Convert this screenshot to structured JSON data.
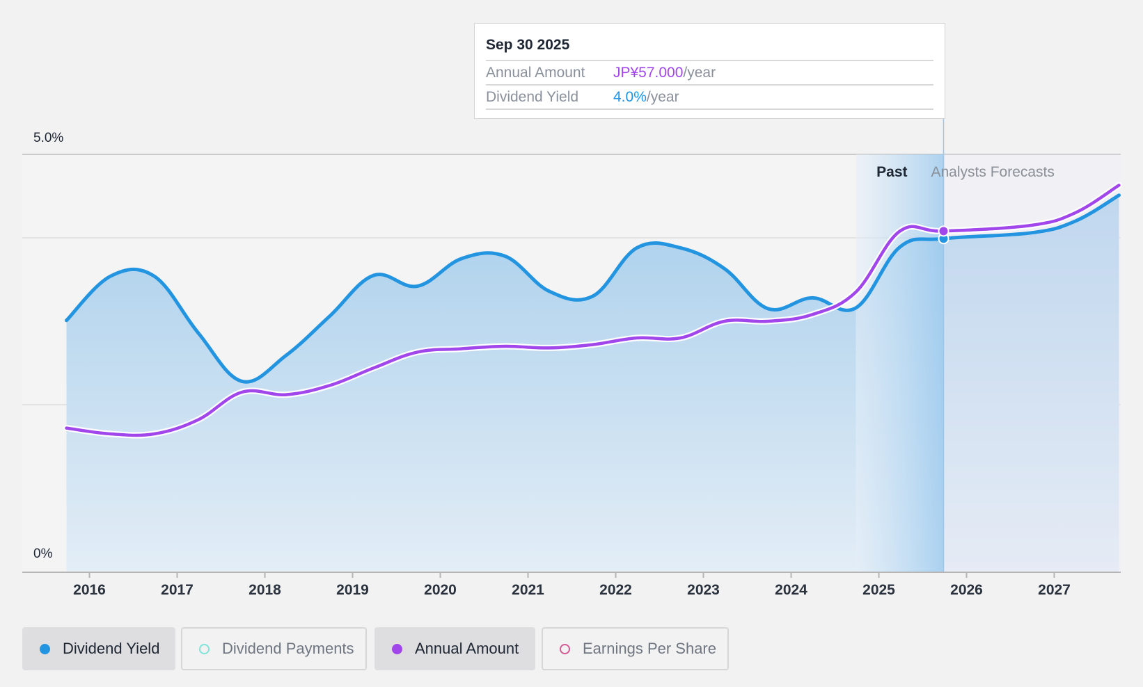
{
  "tooltip": {
    "date": "Sep 30 2025",
    "rows": [
      {
        "label": "Annual Amount",
        "value": "JP¥57.000",
        "suffix": "/year"
      },
      {
        "label": "Dividend Yield",
        "value": "4.0%",
        "suffix": "/year"
      }
    ]
  },
  "regions": {
    "past": "Past",
    "forecast": "Analysts Forecasts"
  },
  "legend": [
    {
      "label": "Dividend Yield",
      "color": "#2394e0",
      "active": true
    },
    {
      "label": "Dividend Payments",
      "color": "#7fe3d8",
      "active": false
    },
    {
      "label": "Annual Amount",
      "color": "#a146ea",
      "active": true
    },
    {
      "label": "Earnings Per Share",
      "color": "#d45a94",
      "active": false
    }
  ],
  "chart_data": {
    "type": "line",
    "ylim": [
      0,
      5.0
    ],
    "y_ticks": [
      "0%",
      "5.0%"
    ],
    "x_ticks": [
      "2016",
      "2017",
      "2018",
      "2019",
      "2020",
      "2021",
      "2022",
      "2023",
      "2024",
      "2025",
      "2026",
      "2027"
    ],
    "past_forecast_split": "2025-09-30",
    "highlight_date": "2025-09-30",
    "series": [
      {
        "name": "Dividend Yield",
        "color": "#2394e0",
        "unit": "%",
        "points": [
          [
            "2015-09-30",
            3.01
          ],
          [
            "2016-03-31",
            3.54
          ],
          [
            "2016-09-30",
            3.54
          ],
          [
            "2017-03-31",
            2.86
          ],
          [
            "2017-09-30",
            2.28
          ],
          [
            "2018-03-31",
            2.59
          ],
          [
            "2018-09-30",
            3.06
          ],
          [
            "2019-03-31",
            3.55
          ],
          [
            "2019-09-30",
            3.42
          ],
          [
            "2020-03-31",
            3.75
          ],
          [
            "2020-09-30",
            3.78
          ],
          [
            "2021-03-31",
            3.36
          ],
          [
            "2021-09-30",
            3.3
          ],
          [
            "2022-03-31",
            3.88
          ],
          [
            "2022-09-30",
            3.88
          ],
          [
            "2023-03-31",
            3.63
          ],
          [
            "2023-09-30",
            3.15
          ],
          [
            "2024-03-31",
            3.28
          ],
          [
            "2024-09-30",
            3.16
          ],
          [
            "2025-03-31",
            3.89
          ],
          [
            "2025-09-30",
            3.99
          ],
          [
            "2026-09-30",
            4.06
          ],
          [
            "2027-03-31",
            4.2
          ],
          [
            "2027-09-30",
            4.51
          ]
        ]
      },
      {
        "name": "Annual Amount",
        "color": "#a146ea",
        "unit": "JP¥",
        "points": [
          [
            "2015-09-30",
            1.72
          ],
          [
            "2016-03-31",
            1.65
          ],
          [
            "2016-09-30",
            1.65
          ],
          [
            "2017-03-31",
            1.82
          ],
          [
            "2017-09-30",
            2.15
          ],
          [
            "2018-03-31",
            2.12
          ],
          [
            "2018-09-30",
            2.23
          ],
          [
            "2019-03-31",
            2.44
          ],
          [
            "2019-09-30",
            2.63
          ],
          [
            "2020-03-31",
            2.67
          ],
          [
            "2020-09-30",
            2.7
          ],
          [
            "2021-03-31",
            2.68
          ],
          [
            "2021-09-30",
            2.72
          ],
          [
            "2022-03-31",
            2.8
          ],
          [
            "2022-09-30",
            2.8
          ],
          [
            "2023-03-31",
            3.0
          ],
          [
            "2023-09-30",
            3.0
          ],
          [
            "2024-03-31",
            3.08
          ],
          [
            "2024-09-30",
            3.35
          ],
          [
            "2025-03-31",
            4.08
          ],
          [
            "2025-09-30",
            4.08
          ],
          [
            "2026-09-30",
            4.15
          ],
          [
            "2027-03-31",
            4.3
          ],
          [
            "2027-09-30",
            4.63
          ]
        ]
      }
    ]
  }
}
